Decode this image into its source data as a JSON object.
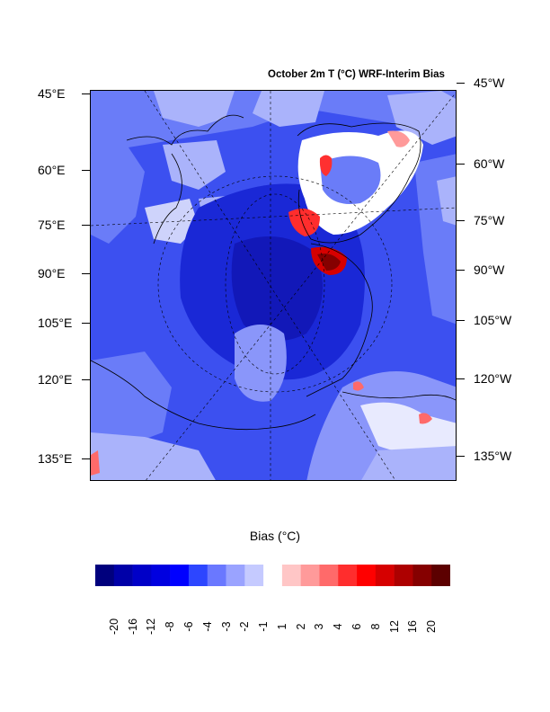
{
  "title": "October 2m T (°C) WRF-Interim Bias",
  "left_labels": [
    "45°E",
    "60°E",
    "75°E",
    "90°E",
    "105°E",
    "120°E",
    "135°E"
  ],
  "right_labels": [
    "45°W",
    "60°W",
    "75°W",
    "90°W",
    "105°W",
    "120°W",
    "135°W"
  ],
  "colorbar": {
    "title": "Bias (°C)",
    "labels": [
      "-20",
      "-16",
      "-12",
      "-8",
      "-6",
      "-4",
      "-3",
      "-2",
      "-1",
      "1",
      "2",
      "3",
      "4",
      "6",
      "8",
      "12",
      "16",
      "20"
    ],
    "colors": [
      "#00007d",
      "#0000a8",
      "#0000c8",
      "#0000e0",
      "#0000ff",
      "#2d46ff",
      "#6a78ff",
      "#9aa3ff",
      "#c5caff",
      "#ffffff",
      "#ffc6c6",
      "#ff9a9a",
      "#ff6a6a",
      "#ff2d2d",
      "#ff0000",
      "#d60000",
      "#ad0000",
      "#850000",
      "#5c0000"
    ]
  },
  "colors": {
    "ocean_bias": "#3a4cf0",
    "deep_bias": "#1a22c8",
    "land_bias": "#6a7cf8",
    "light_bias": "#aab3fb",
    "warm_bias": "#ff3030"
  }
}
